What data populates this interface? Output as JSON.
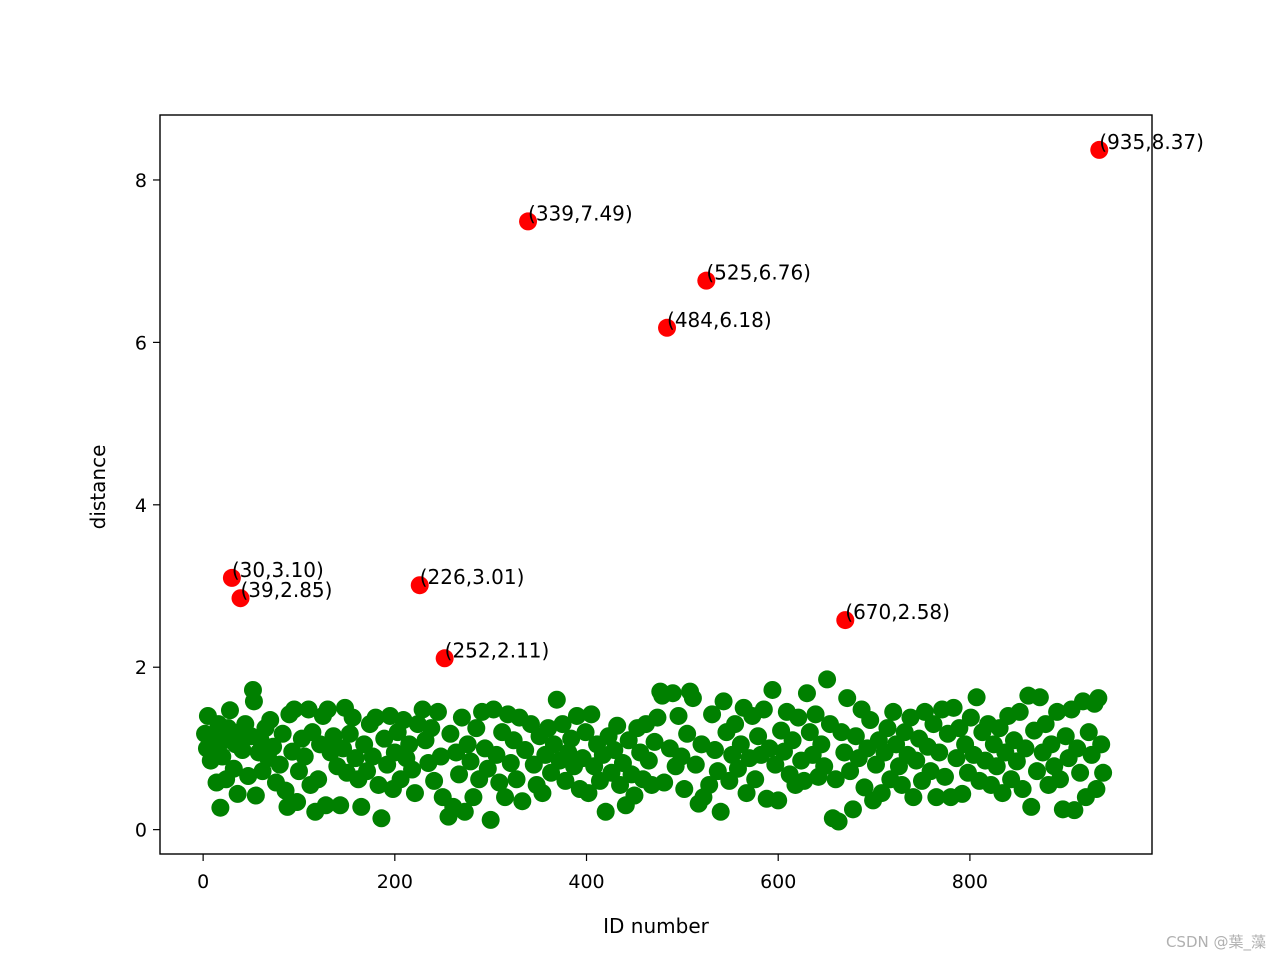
{
  "chart_data": {
    "type": "scatter",
    "title": "",
    "xlabel": "ID number",
    "ylabel": "distance",
    "xlim": [
      -45,
      990
    ],
    "ylim": [
      -0.3,
      8.8
    ],
    "xticks": [
      0,
      200,
      400,
      600,
      800
    ],
    "yticks": [
      0,
      2,
      4,
      6,
      8
    ],
    "grid": false,
    "colors": {
      "inlier": "#008000",
      "outlier": "#ff0000"
    },
    "outliers": [
      {
        "x": 30,
        "y": 3.1,
        "label": "(30,3.10)"
      },
      {
        "x": 39,
        "y": 2.85,
        "label": "(39,2.85)"
      },
      {
        "x": 226,
        "y": 3.01,
        "label": "(226,3.01)"
      },
      {
        "x": 252,
        "y": 2.11,
        "label": "(252,2.11)"
      },
      {
        "x": 339,
        "y": 7.49,
        "label": "(339,7.49)"
      },
      {
        "x": 484,
        "y": 6.18,
        "label": "(484,6.18)"
      },
      {
        "x": 525,
        "y": 6.76,
        "label": "(525,6.76)"
      },
      {
        "x": 670,
        "y": 2.58,
        "label": "(670,2.58)"
      },
      {
        "x": 935,
        "y": 8.37,
        "label": "(935,8.37)"
      }
    ],
    "inliers": [
      [
        2,
        1.18
      ],
      [
        4,
        1.0
      ],
      [
        5,
        1.4
      ],
      [
        8,
        0.85
      ],
      [
        10,
        1.12
      ],
      [
        12,
        0.95
      ],
      [
        14,
        0.58
      ],
      [
        16,
        1.3
      ],
      [
        18,
        0.27
      ],
      [
        20,
        0.9
      ],
      [
        22,
        1.1
      ],
      [
        24,
        0.62
      ],
      [
        26,
        1.25
      ],
      [
        28,
        1.47
      ],
      [
        32,
        0.75
      ],
      [
        34,
        1.05
      ],
      [
        36,
        0.44
      ],
      [
        38,
        1.2
      ],
      [
        41,
        0.98
      ],
      [
        44,
        1.3
      ],
      [
        47,
        0.66
      ],
      [
        50,
        1.15
      ],
      [
        52,
        1.72
      ],
      [
        53,
        1.58
      ],
      [
        55,
        0.42
      ],
      [
        58,
        0.95
      ],
      [
        60,
        1.1
      ],
      [
        62,
        0.72
      ],
      [
        65,
        1.25
      ],
      [
        68,
        0.88
      ],
      [
        70,
        1.35
      ],
      [
        73,
        1.02
      ],
      [
        76,
        0.58
      ],
      [
        80,
        0.8
      ],
      [
        83,
        1.18
      ],
      [
        86,
        0.48
      ],
      [
        88,
        0.28
      ],
      [
        90,
        1.42
      ],
      [
        93,
        0.96
      ],
      [
        95,
        1.48
      ],
      [
        98,
        0.34
      ],
      [
        100,
        0.72
      ],
      [
        103,
        1.12
      ],
      [
        106,
        0.9
      ],
      [
        110,
        1.48
      ],
      [
        112,
        0.55
      ],
      [
        114,
        1.2
      ],
      [
        117,
        0.22
      ],
      [
        120,
        0.62
      ],
      [
        122,
        1.05
      ],
      [
        125,
        1.4
      ],
      [
        128,
        0.3
      ],
      [
        130,
        1.48
      ],
      [
        133,
        0.95
      ],
      [
        136,
        1.15
      ],
      [
        140,
        0.78
      ],
      [
        143,
        0.3
      ],
      [
        146,
        1.0
      ],
      [
        148,
        1.5
      ],
      [
        150,
        0.7
      ],
      [
        153,
        1.18
      ],
      [
        156,
        1.38
      ],
      [
        159,
        0.88
      ],
      [
        162,
        0.62
      ],
      [
        165,
        0.28
      ],
      [
        168,
        1.05
      ],
      [
        171,
        0.72
      ],
      [
        174,
        1.3
      ],
      [
        177,
        0.9
      ],
      [
        180,
        1.38
      ],
      [
        183,
        0.55
      ],
      [
        186,
        0.14
      ],
      [
        189,
        1.12
      ],
      [
        192,
        0.8
      ],
      [
        195,
        1.4
      ],
      [
        198,
        0.5
      ],
      [
        200,
        0.95
      ],
      [
        203,
        1.2
      ],
      [
        206,
        0.62
      ],
      [
        209,
        1.35
      ],
      [
        212,
        0.88
      ],
      [
        215,
        1.05
      ],
      [
        218,
        0.74
      ],
      [
        221,
        0.45
      ],
      [
        224,
        1.3
      ],
      [
        229,
        1.48
      ],
      [
        232,
        1.1
      ],
      [
        235,
        0.82
      ],
      [
        238,
        1.25
      ],
      [
        241,
        0.6
      ],
      [
        245,
        1.45
      ],
      [
        248,
        0.9
      ],
      [
        250,
        0.4
      ],
      [
        256,
        0.16
      ],
      [
        258,
        1.18
      ],
      [
        261,
        0.28
      ],
      [
        264,
        0.95
      ],
      [
        267,
        0.68
      ],
      [
        270,
        1.38
      ],
      [
        273,
        0.22
      ],
      [
        276,
        1.05
      ],
      [
        279,
        0.84
      ],
      [
        282,
        0.4
      ],
      [
        285,
        1.25
      ],
      [
        288,
        0.62
      ],
      [
        291,
        1.45
      ],
      [
        294,
        1.0
      ],
      [
        297,
        0.75
      ],
      [
        300,
        0.12
      ],
      [
        303,
        1.48
      ],
      [
        306,
        0.92
      ],
      [
        309,
        0.58
      ],
      [
        312,
        1.2
      ],
      [
        315,
        0.4
      ],
      [
        318,
        1.42
      ],
      [
        321,
        0.82
      ],
      [
        324,
        1.1
      ],
      [
        327,
        0.62
      ],
      [
        330,
        1.38
      ],
      [
        333,
        0.35
      ],
      [
        336,
        0.98
      ],
      [
        342,
        1.3
      ],
      [
        345,
        0.8
      ],
      [
        348,
        0.55
      ],
      [
        351,
        1.15
      ],
      [
        354,
        0.45
      ],
      [
        357,
        0.92
      ],
      [
        360,
        1.25
      ],
      [
        363,
        0.7
      ],
      [
        366,
        1.05
      ],
      [
        369,
        1.6
      ],
      [
        372,
        0.85
      ],
      [
        375,
        1.3
      ],
      [
        378,
        0.6
      ],
      [
        381,
        0.95
      ],
      [
        384,
        1.12
      ],
      [
        387,
        0.78
      ],
      [
        390,
        1.4
      ],
      [
        393,
        0.5
      ],
      [
        396,
        0.88
      ],
      [
        399,
        1.2
      ],
      [
        402,
        0.45
      ],
      [
        405,
        1.42
      ],
      [
        408,
        0.78
      ],
      [
        411,
        1.05
      ],
      [
        414,
        0.6
      ],
      [
        417,
        0.92
      ],
      [
        420,
        0.22
      ],
      [
        423,
        1.15
      ],
      [
        426,
        0.7
      ],
      [
        429,
        0.98
      ],
      [
        432,
        1.28
      ],
      [
        435,
        0.55
      ],
      [
        438,
        0.82
      ],
      [
        441,
        0.3
      ],
      [
        444,
        1.1
      ],
      [
        447,
        0.68
      ],
      [
        450,
        0.42
      ],
      [
        453,
        1.25
      ],
      [
        456,
        0.95
      ],
      [
        459,
        0.62
      ],
      [
        462,
        1.3
      ],
      [
        465,
        0.85
      ],
      [
        468,
        0.55
      ],
      [
        471,
        1.08
      ],
      [
        474,
        1.38
      ],
      [
        477,
        1.7
      ],
      [
        479,
        1.65
      ],
      [
        481,
        0.58
      ],
      [
        487,
        1.0
      ],
      [
        490,
        1.68
      ],
      [
        493,
        0.78
      ],
      [
        496,
        1.4
      ],
      [
        499,
        0.9
      ],
      [
        502,
        0.5
      ],
      [
        505,
        1.18
      ],
      [
        508,
        1.7
      ],
      [
        511,
        1.62
      ],
      [
        514,
        0.8
      ],
      [
        517,
        0.32
      ],
      [
        520,
        1.05
      ],
      [
        522,
        0.4
      ],
      [
        528,
        0.55
      ],
      [
        531,
        1.42
      ],
      [
        534,
        0.98
      ],
      [
        537,
        0.72
      ],
      [
        540,
        0.22
      ],
      [
        543,
        1.58
      ],
      [
        546,
        1.2
      ],
      [
        549,
        0.6
      ],
      [
        552,
        0.92
      ],
      [
        555,
        1.3
      ],
      [
        558,
        0.75
      ],
      [
        561,
        1.05
      ],
      [
        564,
        1.5
      ],
      [
        567,
        0.45
      ],
      [
        570,
        0.88
      ],
      [
        573,
        1.4
      ],
      [
        576,
        0.62
      ],
      [
        579,
        1.15
      ],
      [
        582,
        0.92
      ],
      [
        585,
        1.48
      ],
      [
        588,
        0.38
      ],
      [
        591,
        1.0
      ],
      [
        594,
        1.72
      ],
      [
        597,
        0.8
      ],
      [
        600,
        0.36
      ],
      [
        603,
        1.22
      ],
      [
        606,
        0.96
      ],
      [
        609,
        1.45
      ],
      [
        612,
        0.68
      ],
      [
        615,
        1.1
      ],
      [
        618,
        0.55
      ],
      [
        621,
        1.38
      ],
      [
        624,
        0.85
      ],
      [
        627,
        0.6
      ],
      [
        630,
        1.68
      ],
      [
        633,
        1.2
      ],
      [
        636,
        0.92
      ],
      [
        639,
        1.42
      ],
      [
        642,
        0.65
      ],
      [
        645,
        1.05
      ],
      [
        648,
        0.78
      ],
      [
        651,
        1.85
      ],
      [
        654,
        1.3
      ],
      [
        657,
        0.14
      ],
      [
        660,
        0.62
      ],
      [
        663,
        0.1
      ],
      [
        666,
        1.2
      ],
      [
        669,
        0.95
      ],
      [
        672,
        1.62
      ],
      [
        675,
        0.72
      ],
      [
        678,
        0.25
      ],
      [
        681,
        1.15
      ],
      [
        684,
        0.88
      ],
      [
        687,
        1.48
      ],
      [
        690,
        0.52
      ],
      [
        693,
        1.0
      ],
      [
        696,
        1.35
      ],
      [
        699,
        0.36
      ],
      [
        702,
        0.8
      ],
      [
        705,
        1.1
      ],
      [
        708,
        0.45
      ],
      [
        711,
        0.95
      ],
      [
        714,
        1.25
      ],
      [
        717,
        0.62
      ],
      [
        720,
        1.45
      ],
      [
        723,
        1.05
      ],
      [
        726,
        0.78
      ],
      [
        729,
        0.55
      ],
      [
        732,
        1.2
      ],
      [
        735,
        0.92
      ],
      [
        738,
        1.38
      ],
      [
        741,
        0.4
      ],
      [
        744,
        0.85
      ],
      [
        747,
        1.12
      ],
      [
        750,
        0.6
      ],
      [
        753,
        1.45
      ],
      [
        756,
        1.02
      ],
      [
        759,
        0.72
      ],
      [
        762,
        1.3
      ],
      [
        765,
        0.4
      ],
      [
        768,
        0.95
      ],
      [
        771,
        1.48
      ],
      [
        774,
        0.65
      ],
      [
        777,
        1.18
      ],
      [
        780,
        0.4
      ],
      [
        783,
        1.5
      ],
      [
        786,
        0.88
      ],
      [
        789,
        1.25
      ],
      [
        792,
        0.44
      ],
      [
        795,
        1.05
      ],
      [
        798,
        0.7
      ],
      [
        801,
        1.38
      ],
      [
        804,
        0.92
      ],
      [
        807,
        1.63
      ],
      [
        810,
        0.6
      ],
      [
        813,
        1.2
      ],
      [
        816,
        0.85
      ],
      [
        819,
        1.3
      ],
      [
        822,
        0.55
      ],
      [
        825,
        1.05
      ],
      [
        828,
        0.78
      ],
      [
        831,
        1.25
      ],
      [
        834,
        0.45
      ],
      [
        837,
        0.95
      ],
      [
        840,
        1.4
      ],
      [
        843,
        0.62
      ],
      [
        846,
        1.1
      ],
      [
        849,
        0.84
      ],
      [
        852,
        1.45
      ],
      [
        855,
        0.5
      ],
      [
        858,
        1.0
      ],
      [
        861,
        1.65
      ],
      [
        864,
        0.28
      ],
      [
        867,
        1.22
      ],
      [
        870,
        0.72
      ],
      [
        873,
        1.63
      ],
      [
        876,
        0.95
      ],
      [
        879,
        1.3
      ],
      [
        882,
        0.55
      ],
      [
        885,
        1.05
      ],
      [
        888,
        0.78
      ],
      [
        891,
        1.45
      ],
      [
        894,
        0.62
      ],
      [
        897,
        0.25
      ],
      [
        900,
        1.15
      ],
      [
        903,
        0.88
      ],
      [
        906,
        1.48
      ],
      [
        909,
        0.24
      ],
      [
        912,
        1.0
      ],
      [
        915,
        0.7
      ],
      [
        918,
        1.58
      ],
      [
        921,
        0.4
      ],
      [
        924,
        1.2
      ],
      [
        927,
        0.92
      ],
      [
        930,
        1.55
      ],
      [
        932,
        0.5
      ],
      [
        934,
        1.62
      ],
      [
        937,
        1.05
      ],
      [
        939,
        0.7
      ]
    ]
  },
  "watermark": "CSDN @葉_藻"
}
